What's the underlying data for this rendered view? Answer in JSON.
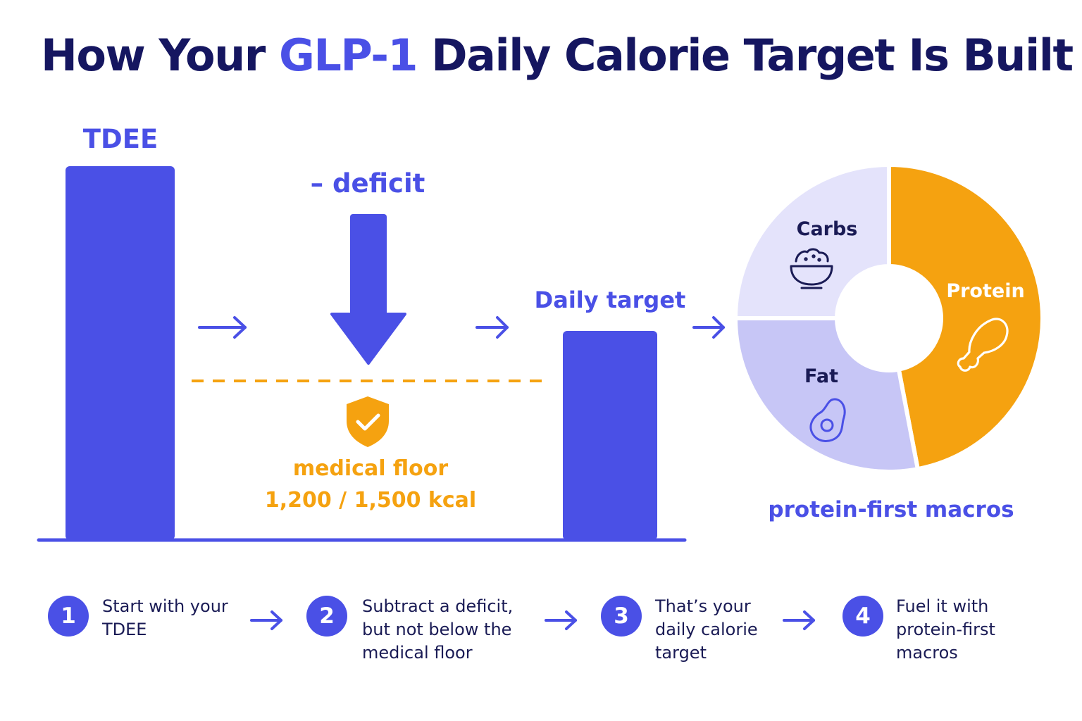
{
  "title": {
    "prefix": "How Your",
    "accent": "GLP-1",
    "suffix": "Daily Calorie Target Is Built"
  },
  "labels": {
    "tdee": "TDEE",
    "deficit": "– deficit",
    "daily_target": "Daily target",
    "medical_floor": "medical floor",
    "floor_values": "1,200 / 1,500 kcal",
    "macros_caption": "protein-first macros"
  },
  "macros": [
    {
      "name": "Carbs",
      "icon": "bowl-icon",
      "share": 0.25,
      "color": "#e4e3fb"
    },
    {
      "name": "Protein",
      "icon": "drumstick-icon",
      "share": 0.47,
      "color": "#f5a210"
    },
    {
      "name": "Fat",
      "icon": "avocado-icon",
      "share": 0.28,
      "color": "#c7c6f6"
    }
  ],
  "steps": [
    {
      "number": "1",
      "lines": [
        "Start with your",
        "TDEE"
      ]
    },
    {
      "number": "2",
      "lines": [
        "Subtract a deficit,",
        "but not below the",
        "medical floor"
      ]
    },
    {
      "number": "3",
      "lines": [
        "That’s your",
        "daily calorie",
        "target"
      ]
    },
    {
      "number": "4",
      "lines": [
        "Fuel it with",
        "protein-first",
        "macros"
      ]
    }
  ],
  "colors": {
    "primary": "#4a50e6",
    "navy": "#151660",
    "orange": "#f5a210"
  }
}
